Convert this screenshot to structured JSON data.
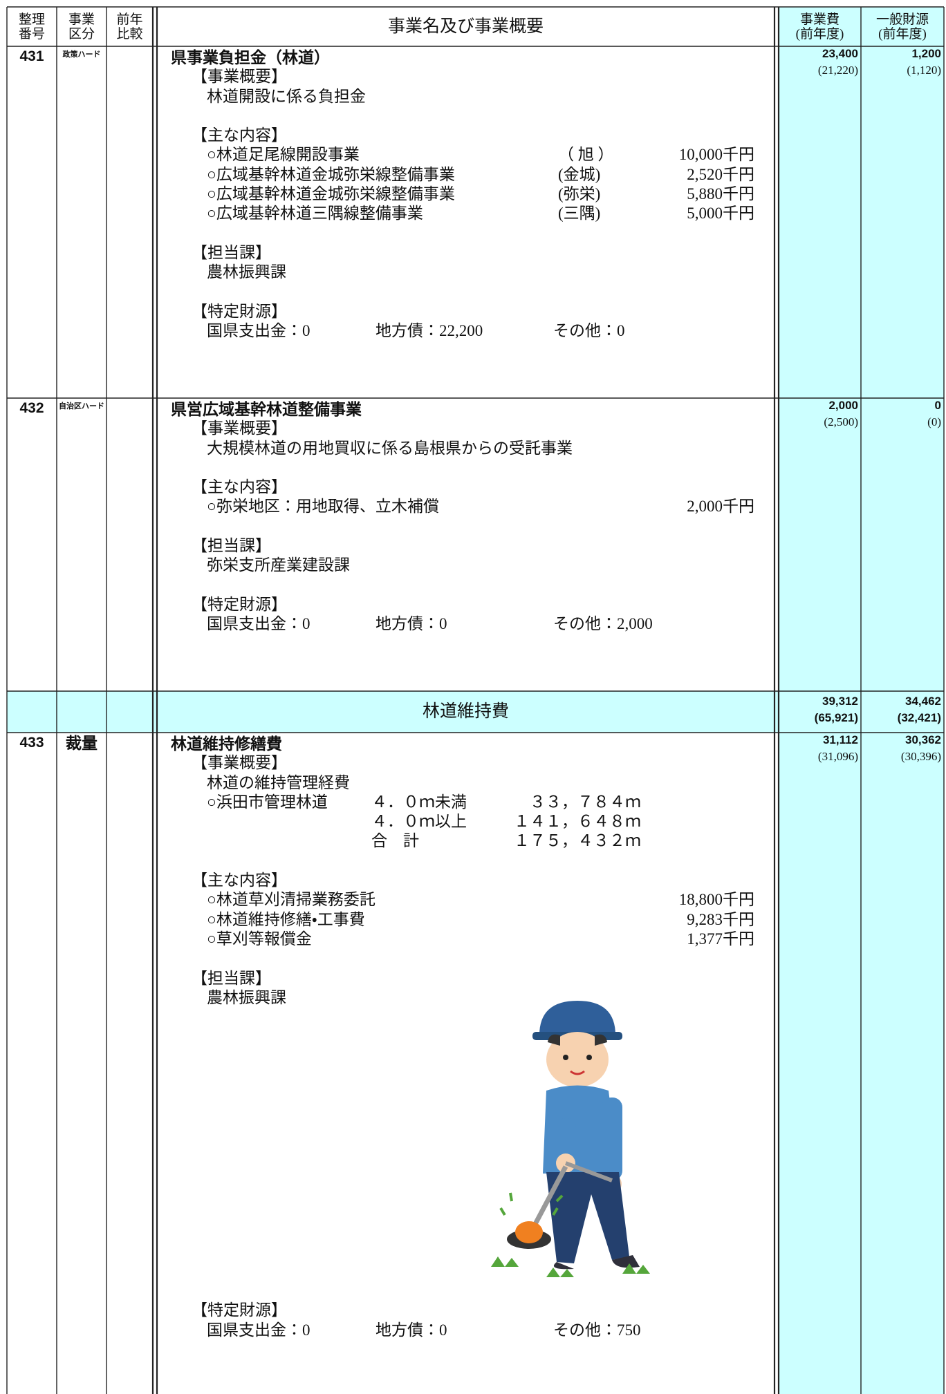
{
  "header": {
    "columns": [
      [
        "整理",
        "番号"
      ],
      [
        "事業",
        "区分"
      ],
      [
        "前年",
        "比較"
      ],
      [
        "事業名及び事業概要"
      ],
      [
        "事業費",
        "(前年度)"
      ],
      [
        "一般財源",
        "(前年度)"
      ]
    ]
  },
  "items": [
    {
      "id": "431",
      "category": "政策ハード",
      "title": "県事業負担金（林道）",
      "overview": {
        "label": "【事業概要】",
        "lines": [
          "林道開設に係る負担金"
        ]
      },
      "contents": {
        "label": "【主な内容】",
        "items": [
          {
            "name": "○林道足尾線開設事業",
            "area": "（ 旭 ）",
            "amount": "10,000千円"
          },
          {
            "name": "○広域基幹林道金城弥栄線整備事業",
            "area": "(金城)",
            "amount": "2,520千円"
          },
          {
            "name": "○広域基幹林道金城弥栄線整備事業",
            "area": "(弥栄)",
            "amount": "5,880千円"
          },
          {
            "name": "○広域基幹林道三隅線整備事業",
            "area": "(三隅)",
            "amount": "5,000千円"
          }
        ]
      },
      "department": {
        "label": "【担当課】",
        "name": "農林振興課"
      },
      "funding": {
        "label": "【特定財源】",
        "items": [
          "国県支出金：0",
          "地方債：22,200",
          "その他：0"
        ]
      },
      "cost": "23,400",
      "cost_prev": "(21,220)",
      "general": "1,200",
      "general_prev": "(1,120)"
    },
    {
      "id": "432",
      "category": "自治区ハード",
      "title": "県営広域基幹林道整備事業",
      "overview": {
        "label": "【事業概要】",
        "lines": [
          "大規模林道の用地買収に係る島根県からの受託事業"
        ]
      },
      "contents": {
        "label": "【主な内容】",
        "items": [
          {
            "name": "○弥栄地区：用地取得、立木補償",
            "amount": "2,000千円"
          }
        ]
      },
      "department": {
        "label": "【担当課】",
        "name": "弥栄支所産業建設課"
      },
      "funding": {
        "label": "【特定財源】",
        "items": [
          "国県支出金：0",
          "地方債：0",
          "その他：2,000"
        ]
      },
      "cost": "2,000",
      "cost_prev": "(2,500)",
      "general": "0",
      "general_prev": "(0)"
    }
  ],
  "group": {
    "title": "林道維持費",
    "cost": "39,312",
    "cost_prev": "(65,921)",
    "general": "34,462",
    "general_prev": "(32,421)",
    "items": [
      {
        "id": "433",
        "category": "裁量",
        "title": "林道維持修繕費",
        "overview": {
          "label": "【事業概要】",
          "lines": [
            "林道の維持管理経費"
          ],
          "roads": [
            {
              "name": "○浜田市管理林道",
              "class": "４．０ｍ未満",
              "length": "３３，７８４ｍ"
            },
            {
              "class": "４．０ｍ以上",
              "length": "１４１，６４８ｍ"
            },
            {
              "class": "合　計",
              "length": "１７５，４３２ｍ"
            }
          ]
        },
        "contents": {
          "label": "【主な内容】",
          "items": [
            {
              "name": "○林道草刈清掃業務委託",
              "amount": "18,800千円"
            },
            {
              "name": "○林道維持修繕・工事費",
              "amount": "9,283千円"
            },
            {
              "name": "○草刈等報償金",
              "amount": "1,377千円"
            }
          ]
        },
        "department": {
          "label": "【担当課】",
          "name": "農林振興課"
        },
        "funding": {
          "label": "【特定財源】",
          "items": [
            "国県支出金：0",
            "地方債：0",
            "その他：750"
          ]
        },
        "cost": "31,112",
        "cost_prev": "(31,096)",
        "general": "30,362",
        "general_prev": "(30,396)"
      }
    ]
  }
}
